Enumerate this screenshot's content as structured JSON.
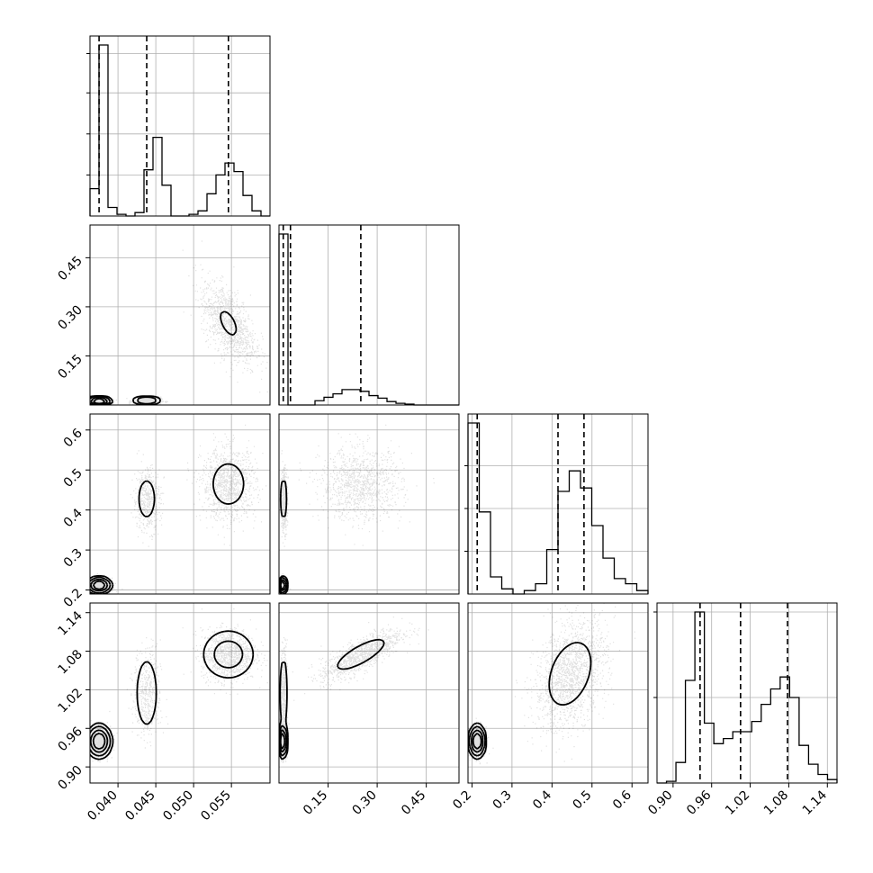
{
  "chart_data": {
    "type": "scatter",
    "subtype": "corner-plot",
    "grid": true,
    "parameters": [
      {
        "range": [
          0.0363,
          0.0601
        ],
        "ticks": [
          "0.040",
          "0.045",
          "0.050",
          "0.055"
        ],
        "tick_values": [
          0.04,
          0.045,
          0.05,
          0.055
        ],
        "quantiles": [
          0.0375,
          0.0438,
          0.0546
        ],
        "histogram": [
          0.16,
          1.0,
          0.05,
          0.01,
          0.0,
          0.02,
          0.27,
          0.46,
          0.18,
          0.0,
          0.0,
          0.01,
          0.03,
          0.13,
          0.24,
          0.31,
          0.26,
          0.12,
          0.03,
          0.0
        ],
        "hist_yticks": [
          0.24,
          0.48,
          0.72,
          0.95
        ]
      },
      {
        "range": [
          0.0,
          0.55
        ],
        "ticks": [
          "0.15",
          "0.30",
          "0.45"
        ],
        "tick_values": [
          0.15,
          0.3,
          0.45
        ],
        "quantiles": [
          0.013,
          0.035,
          0.25
        ],
        "histogram": [
          1.0,
          0.0,
          0.0,
          0.0,
          0.025,
          0.045,
          0.065,
          0.09,
          0.09,
          0.08,
          0.055,
          0.04,
          0.02,
          0.01,
          0.005,
          0.0,
          0.0,
          0.0,
          0.0,
          0.0
        ],
        "hist_yticks": []
      },
      {
        "range": [
          0.19,
          0.64
        ],
        "ticks": [
          "0.2",
          "0.3",
          "0.4",
          "0.5",
          "0.6"
        ],
        "tick_values": [
          0.2,
          0.3,
          0.4,
          0.5,
          0.6
        ],
        "quantiles": [
          0.213,
          0.415,
          0.48
        ],
        "histogram": [
          1.0,
          0.48,
          0.1,
          0.03,
          0.0,
          0.02,
          0.06,
          0.26,
          0.6,
          0.72,
          0.62,
          0.4,
          0.21,
          0.09,
          0.06,
          0.02
        ],
        "hist_yticks": [
          0.25,
          0.5,
          0.75
        ]
      },
      {
        "range": [
          0.875,
          1.155
        ],
        "ticks": [
          "0.90",
          "0.96",
          "1.02",
          "1.08",
          "1.14"
        ],
        "tick_values": [
          0.9,
          0.96,
          1.02,
          1.08,
          1.14
        ],
        "quantiles": [
          0.942,
          1.005,
          1.078
        ],
        "histogram": [
          0.0,
          0.01,
          0.12,
          0.6,
          1.0,
          0.35,
          0.23,
          0.26,
          0.3,
          0.3,
          0.36,
          0.46,
          0.55,
          0.62,
          0.5,
          0.22,
          0.11,
          0.05,
          0.02
        ],
        "hist_yticks": [
          0.5,
          1.0
        ]
      }
    ],
    "pairs": [
      {
        "x": 0,
        "y": 1,
        "clusters": [
          {
            "mx": 0.0375,
            "my": 0.012,
            "sx": 0.0007,
            "sy": 0.006,
            "r": 0.0,
            "w": 0.42
          },
          {
            "mx": 0.0438,
            "my": 0.014,
            "sx": 0.0009,
            "sy": 0.006,
            "r": 0.0,
            "w": 0.18
          },
          {
            "mx": 0.0546,
            "my": 0.25,
            "sx": 0.0018,
            "sy": 0.062,
            "r": -0.55,
            "w": 0.4
          }
        ]
      },
      {
        "x": 0,
        "y": 2,
        "clusters": [
          {
            "mx": 0.0375,
            "my": 0.212,
            "sx": 0.0007,
            "sy": 0.009,
            "r": 0.0,
            "w": 0.42
          },
          {
            "mx": 0.0438,
            "my": 0.428,
            "sx": 0.0009,
            "sy": 0.04,
            "r": 0.0,
            "w": 0.18
          },
          {
            "mx": 0.0546,
            "my": 0.465,
            "sx": 0.0018,
            "sy": 0.045,
            "r": 0.0,
            "w": 0.4
          }
        ]
      },
      {
        "x": 0,
        "y": 3,
        "clusters": [
          {
            "mx": 0.0375,
            "my": 0.94,
            "sx": 0.0007,
            "sy": 0.011,
            "r": 0.0,
            "w": 0.42
          },
          {
            "mx": 0.0438,
            "my": 1.015,
            "sx": 0.0009,
            "sy": 0.035,
            "r": 0.0,
            "w": 0.18
          },
          {
            "mx": 0.0546,
            "my": 1.075,
            "sx": 0.0018,
            "sy": 0.02,
            "r": 0.0,
            "w": 0.4
          }
        ]
      },
      {
        "x": 1,
        "y": 2,
        "clusters": [
          {
            "mx": 0.012,
            "my": 0.212,
            "sx": 0.005,
            "sy": 0.009,
            "r": 0.0,
            "w": 0.42
          },
          {
            "mx": 0.014,
            "my": 0.428,
            "sx": 0.005,
            "sy": 0.04,
            "r": 0.0,
            "w": 0.18
          },
          {
            "mx": 0.25,
            "my": 0.465,
            "sx": 0.062,
            "sy": 0.045,
            "r": 0.0,
            "w": 0.4
          }
        ]
      },
      {
        "x": 1,
        "y": 3,
        "clusters": [
          {
            "mx": 0.012,
            "my": 0.94,
            "sx": 0.005,
            "sy": 0.011,
            "r": 0.0,
            "w": 0.42
          },
          {
            "mx": 0.014,
            "my": 1.015,
            "sx": 0.005,
            "sy": 0.035,
            "r": 0.0,
            "w": 0.18
          },
          {
            "mx": 0.25,
            "my": 1.075,
            "sx": 0.062,
            "sy": 0.02,
            "r": 0.78,
            "w": 0.4
          }
        ]
      },
      {
        "x": 2,
        "y": 3,
        "clusters": [
          {
            "mx": 0.213,
            "my": 0.94,
            "sx": 0.009,
            "sy": 0.011,
            "r": 0.0,
            "w": 0.42
          },
          {
            "mx": 0.445,
            "my": 1.045,
            "sx": 0.045,
            "sy": 0.042,
            "r": 0.35,
            "w": 0.58
          }
        ]
      }
    ]
  }
}
